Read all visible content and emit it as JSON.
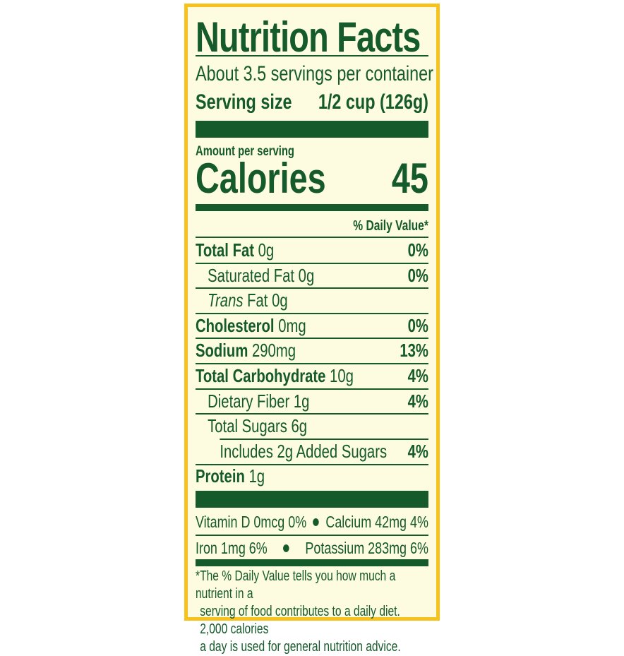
{
  "title": "Nutrition Facts",
  "servings_per_container": "About 3.5 servings per container",
  "serving_size_label": "Serving size",
  "serving_size_value": "1/2 cup (126g)",
  "amount_per_serving": "Amount per serving",
  "calories_label": "Calories",
  "calories_value": "45",
  "daily_value_header": "% Daily Value*",
  "nutrients": [
    {
      "name": "Total Fat",
      "amount": " 0g",
      "dv": "0%"
    },
    {
      "name": "Saturated Fat",
      "amount": " 0g",
      "dv": "0%"
    },
    {
      "name": "Trans",
      "amount": " Fat 0g",
      "dv": ""
    },
    {
      "name": "Cholesterol",
      "amount": " 0mg",
      "dv": "0%"
    },
    {
      "name": "Sodium",
      "amount": " 290mg",
      "dv": "13%"
    },
    {
      "name": "Total Carbohydrate",
      "amount": " 10g",
      "dv": "4%"
    },
    {
      "name": "Dietary Fiber",
      "amount": " 1g",
      "dv": "4%"
    },
    {
      "name": "Total Sugars",
      "amount": " 6g",
      "dv": ""
    },
    {
      "name": "Includes 2g Added Sugars",
      "amount": "",
      "dv": "4%"
    },
    {
      "name": "Protein",
      "amount": " 1g",
      "dv": ""
    }
  ],
  "vitamins": [
    {
      "left": "Vitamin D 0mcg 0%",
      "right": "Calcium 42mg 4%"
    },
    {
      "left": "Iron 1mg 6%",
      "right": "Potassium 283mg 6%"
    }
  ],
  "footnote": [
    "*The % Daily Value tells you how much a nutrient in a",
    "serving of food contributes to a daily diet. 2,000 calories",
    "a day is used for general nutrition advice."
  ],
  "colors": {
    "border": "#f8c21c",
    "background": "#fdfbe0",
    "text": "#155a2b"
  }
}
